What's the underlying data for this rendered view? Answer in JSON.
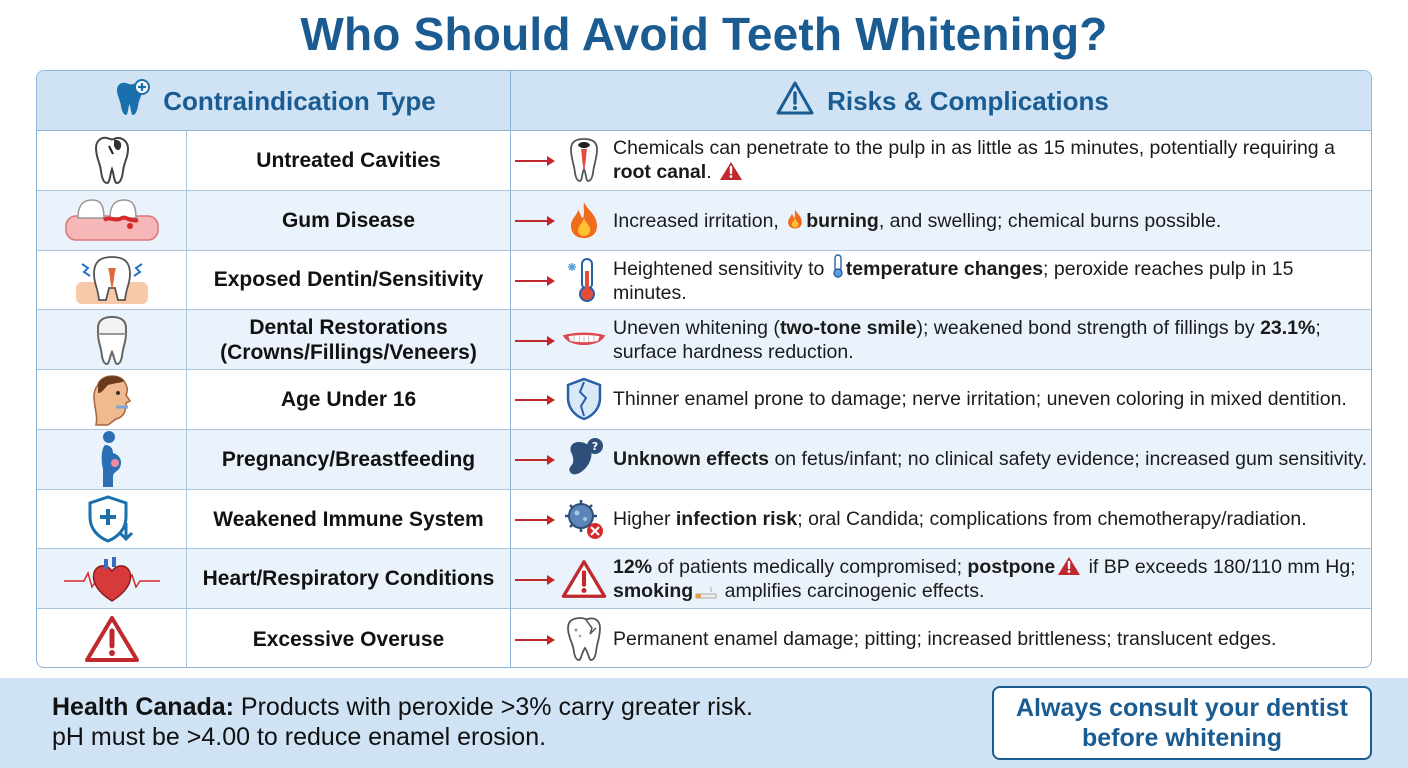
{
  "title": "Who Should Avoid Teeth Whitening?",
  "header": {
    "col1": "Contraindication Type",
    "col2": "Risks & Complications",
    "col1_icon": "tooth-plus-icon",
    "col2_icon": "warning-icon"
  },
  "rows": [
    {
      "type": "Untreated Cavities",
      "icon": "cavity-tooth-icon",
      "risk_icon": "tooth-pulp-icon",
      "risk": [
        {
          "t": "Chemicals can penetrate to the pulp in as little as 15 minutes, potentially requiring a "
        },
        {
          "t": "root canal",
          "b": true
        },
        {
          "t": ". "
        }
      ]
    },
    {
      "type": "Gum Disease",
      "icon": "inflamed-gum-icon",
      "risk_icon": "fire-icon",
      "risk": [
        {
          "t": "Increased irritation, "
        },
        {
          "t": "burning",
          "b": true
        },
        {
          "t": ", and swelling; chemical burns possible."
        }
      ]
    },
    {
      "type": "Exposed Dentin/Sensitivity",
      "icon": "sensitive-tooth-icon",
      "risk_icon": "thermometer-icon",
      "risk": [
        {
          "t": "Heightened sensitivity to "
        },
        {
          "t": "temperature changes",
          "b": true
        },
        {
          "t": "; peroxide reaches pulp in 15 minutes."
        }
      ]
    },
    {
      "type": "Dental Restorations (Crowns/Fillings/Veneers)",
      "icon": "crown-tooth-icon",
      "risk_icon": "smile-icon",
      "risk": [
        {
          "t": "Uneven whitening ("
        },
        {
          "t": "two-tone smile",
          "b": true
        },
        {
          "t": "); weakened bond strength of fillings by "
        },
        {
          "t": "23.1%",
          "b": true
        },
        {
          "t": "; surface hardness reduction."
        }
      ]
    },
    {
      "type": "Age Under 16",
      "icon": "child-face-icon",
      "risk_icon": "cracked-shield-icon",
      "risk": [
        {
          "t": "Thinner enamel prone to damage; nerve irritation; uneven coloring in mixed dentition."
        }
      ]
    },
    {
      "type": "Pregnancy/Breastfeeding",
      "icon": "pregnant-woman-icon",
      "risk_icon": "fetus-question-icon",
      "risk": [
        {
          "t": "Unknown effects",
          "b": true
        },
        {
          "t": " on fetus/infant; no clinical safety evidence; increased gum sensitivity."
        }
      ]
    },
    {
      "type": "Weakened Immune System",
      "icon": "shield-down-icon",
      "risk_icon": "germ-icon",
      "risk": [
        {
          "t": "Higher "
        },
        {
          "t": "infection risk",
          "b": true
        },
        {
          "t": "; oral Candida; complications from chemotherapy/radiation."
        }
      ]
    },
    {
      "type": "Heart/Respiratory Conditions",
      "icon": "heart-pulse-icon",
      "risk_icon": "warning-icon",
      "risk": [
        {
          "t": "12%",
          "b": true
        },
        {
          "t": " of patients medically compromised; "
        },
        {
          "t": "postpone",
          "b": true
        },
        {
          "t": " if BP exceeds 180/110 mm Hg; "
        },
        {
          "t": "smoking",
          "b": true
        },
        {
          "t": " amplifies carcinogenic effects."
        }
      ]
    },
    {
      "type": "Excessive Overuse",
      "icon": "warning-icon",
      "risk_icon": "damaged-tooth-icon",
      "risk": [
        {
          "t": "Permanent enamel damage; pitting; increased brittleness; translucent edges."
        }
      ]
    }
  ],
  "footer": {
    "label": "Health Canada:",
    "line1": " Products with peroxide >3% carry greater risk.",
    "line2": "pH must be >4.00 to reduce enamel erosion.",
    "cta": "Always consult your dentist before whitening"
  },
  "colors": {
    "title": "#1a5c91",
    "header_bg": "#cfe3f4",
    "row_alt_bg": "#eaf3fb",
    "border": "#8db4d6",
    "arrow": "#c0282d",
    "warning": "#c0282d"
  }
}
